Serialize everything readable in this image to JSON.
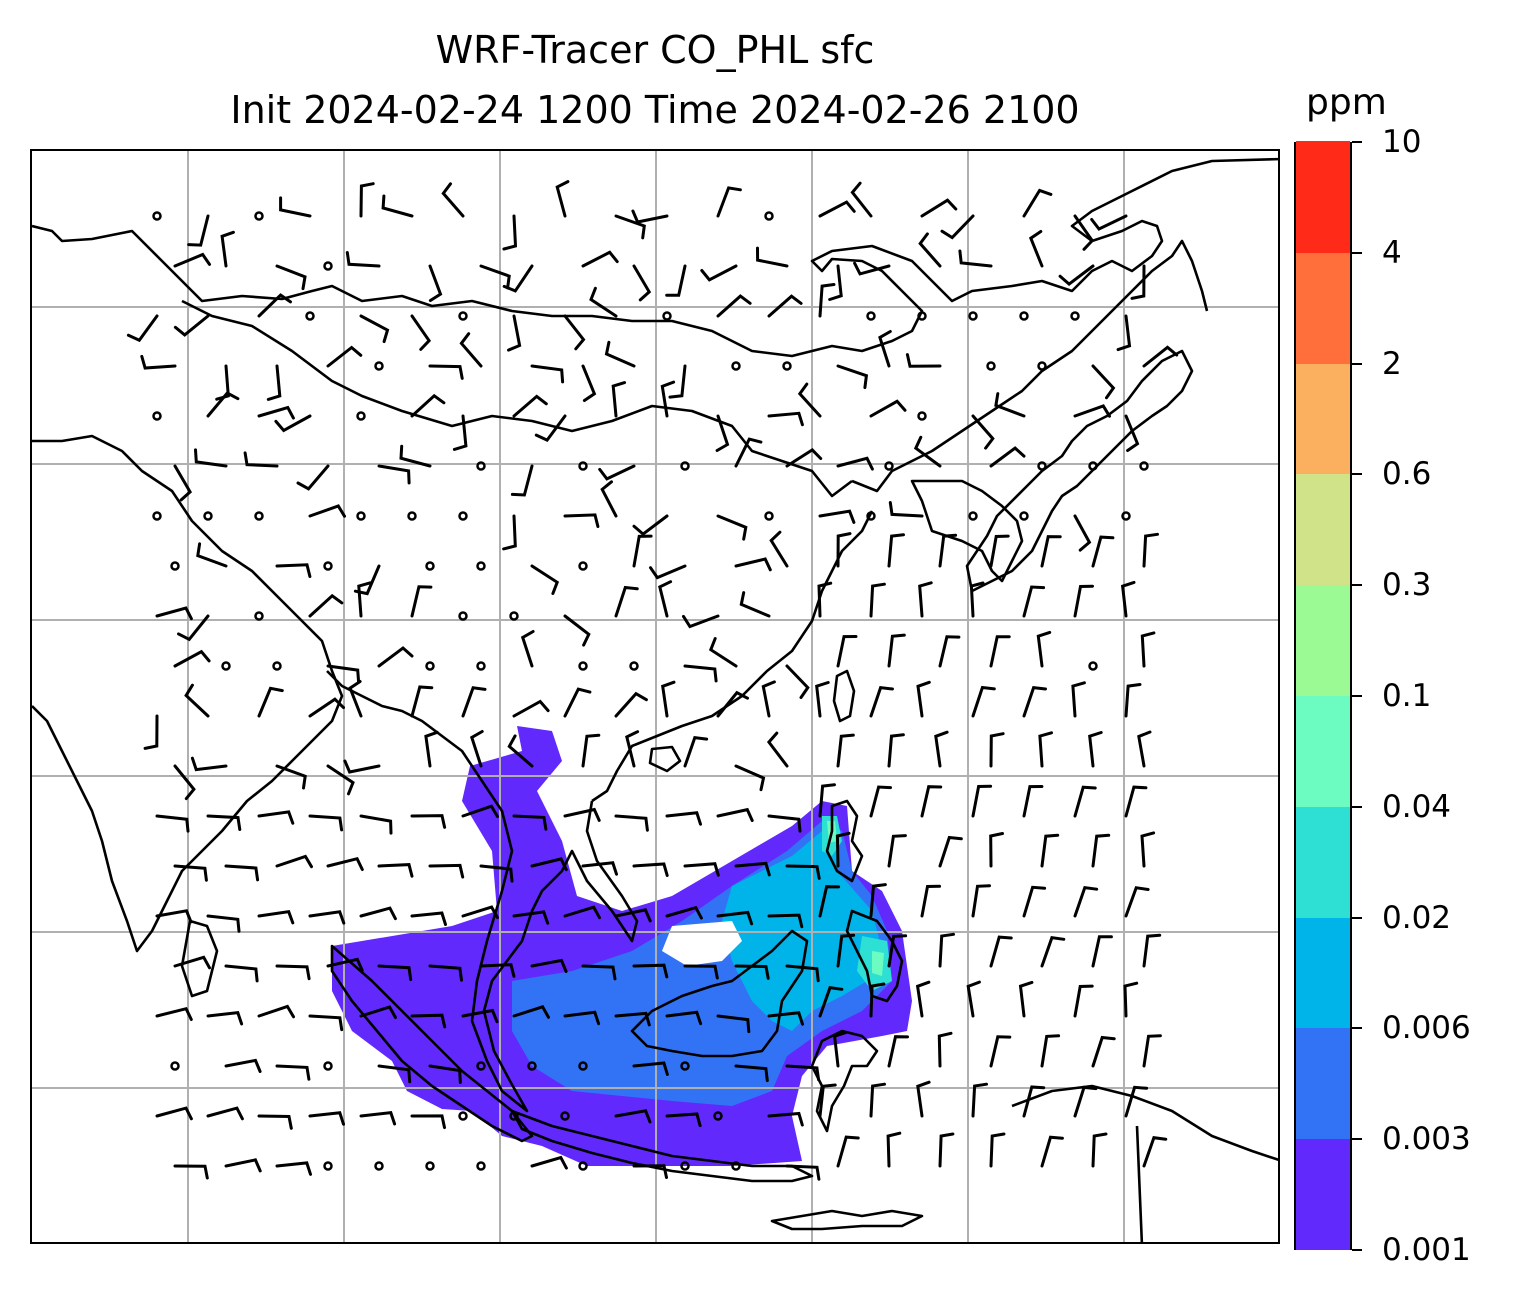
{
  "title": {
    "line1": "WRF-Tracer CO_PHL sfc",
    "line2": "Init 2024-02-24 1200 Time 2024-02-26 2100"
  },
  "colorbar": {
    "unit": "ppm",
    "levels": [
      "0.001",
      "0.003",
      "0.006",
      "0.02",
      "0.04",
      "0.1",
      "0.3",
      "0.6",
      "2",
      "4",
      "10"
    ],
    "colors": [
      "#6229fd",
      "#3273f6",
      "#00b4ea",
      "#2ee0d4",
      "#6cfbc1",
      "#9bfa94",
      "#d1e388",
      "#fbb060",
      "#ff6f3b",
      "#ff2b18"
    ]
  },
  "map": {
    "gridlines": true,
    "gridline_color": "#b0b0b0",
    "coastline_color": "#000000"
  }
}
